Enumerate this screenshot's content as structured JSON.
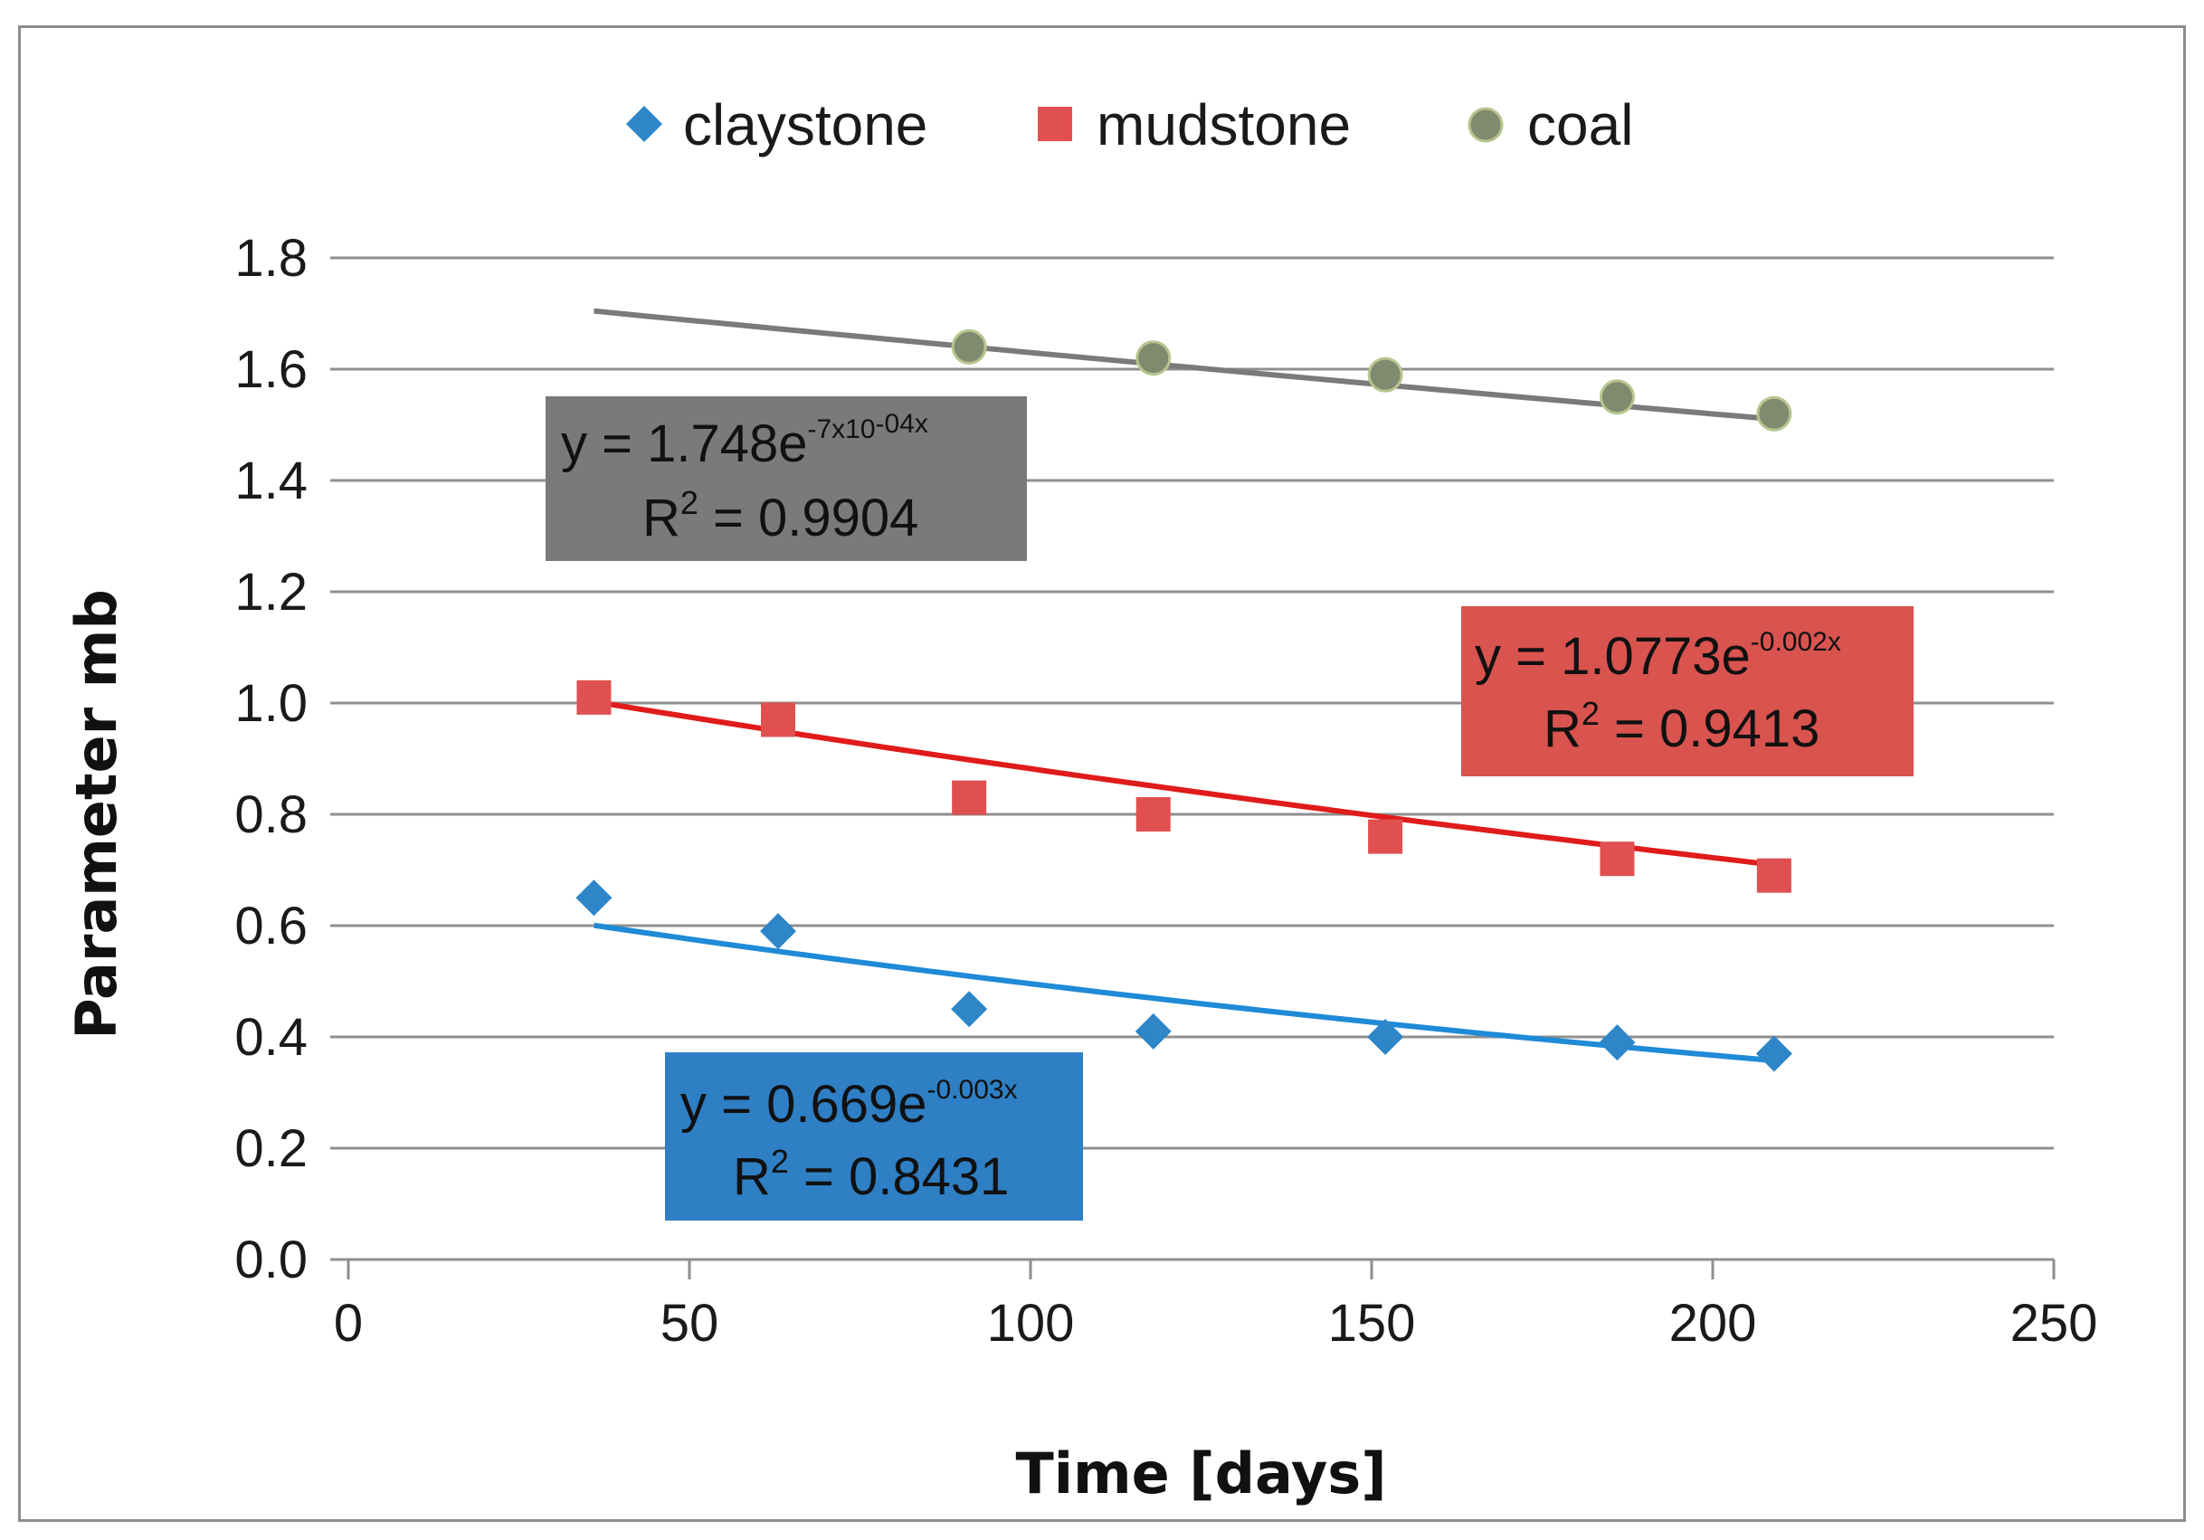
{
  "chart_data": {
    "type": "scatter",
    "title": "",
    "xlabel": "Time [days]",
    "ylabel": "Parameter mb",
    "xlim": [
      0,
      250
    ],
    "ylim": [
      0,
      1.8
    ],
    "x_ticks": [
      "0",
      "50",
      "100",
      "150",
      "200",
      "250"
    ],
    "y_ticks": [
      "0.0",
      "0.2",
      "0.4",
      "0.6",
      "0.8",
      "1.0",
      "1.2",
      "1.4",
      "1.6",
      "1.8"
    ],
    "grid": "horizontal",
    "legend_position": "top-center",
    "series": [
      {
        "name": "claystone",
        "marker": "diamond",
        "color": "#2e86c8",
        "trend_color": "#1f8ad6",
        "x": [
          36,
          63,
          91,
          118,
          152,
          186,
          209
        ],
        "y": [
          0.65,
          0.59,
          0.45,
          0.41,
          0.4,
          0.39,
          0.37
        ],
        "trendline": {
          "type": "exponential",
          "a": 0.669,
          "b": -0.003,
          "equation_prefix": "y = 0.669e",
          "equation_exponent": "-0.003x",
          "r2_prefix": "R",
          "r2_power": "2",
          "r2_value": " = 0.8431",
          "box_color": "#2e7fc4"
        }
      },
      {
        "name": "mudstone",
        "marker": "square",
        "color": "#e05050",
        "trend_color": "#e01b1b",
        "x": [
          36,
          63,
          91,
          118,
          152,
          186,
          209
        ],
        "y": [
          1.01,
          0.97,
          0.83,
          0.8,
          0.76,
          0.72,
          0.69
        ],
        "trendline": {
          "type": "exponential",
          "a": 1.0773,
          "b": -0.002,
          "equation_prefix": "y = 1.0773e",
          "equation_exponent": "-0.002x",
          "r2_prefix": "R",
          "r2_power": "2",
          "r2_value": " = 0.9413",
          "box_color": "#d9534f"
        }
      },
      {
        "name": "coal",
        "marker": "circle",
        "color": "#7f8a6f",
        "trend_color": "#7a7a7a",
        "x": [
          91,
          118,
          152,
          186,
          209
        ],
        "y": [
          1.64,
          1.62,
          1.59,
          1.55,
          1.52
        ],
        "trendline": {
          "type": "exponential",
          "a": 1.748,
          "b": -0.0007,
          "equation_prefix": "y = 1.748e",
          "equation_exponent": "-7x10",
          "equation_exponent_tail": "-04x",
          "r2_prefix": "R",
          "r2_power": "2",
          "r2_value": " = 0.9904",
          "box_color": "#7a7a7a"
        }
      }
    ]
  }
}
